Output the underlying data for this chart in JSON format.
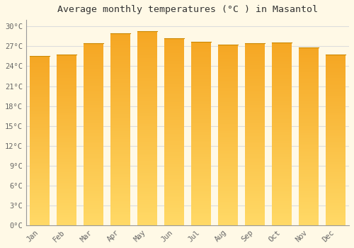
{
  "title": "Average monthly temperatures (°C ) in Masantol",
  "months": [
    "Jan",
    "Feb",
    "Mar",
    "Apr",
    "May",
    "Jun",
    "Jul",
    "Aug",
    "Sep",
    "Oct",
    "Nov",
    "Dec"
  ],
  "values": [
    25.5,
    25.8,
    27.5,
    29.0,
    29.3,
    28.2,
    27.7,
    27.3,
    27.5,
    27.6,
    26.8,
    25.8
  ],
  "bar_color_top": "#F5A623",
  "bar_color_bottom": "#FFD966",
  "background_color": "#FFF9E6",
  "grid_color": "#DDDDDD",
  "ylim": [
    0,
    31
  ],
  "ytick_values": [
    0,
    3,
    6,
    9,
    12,
    15,
    18,
    21,
    24,
    27,
    30
  ],
  "title_fontsize": 9.5,
  "tick_fontsize": 7.5,
  "figsize": [
    5.0,
    3.5
  ],
  "dpi": 100
}
